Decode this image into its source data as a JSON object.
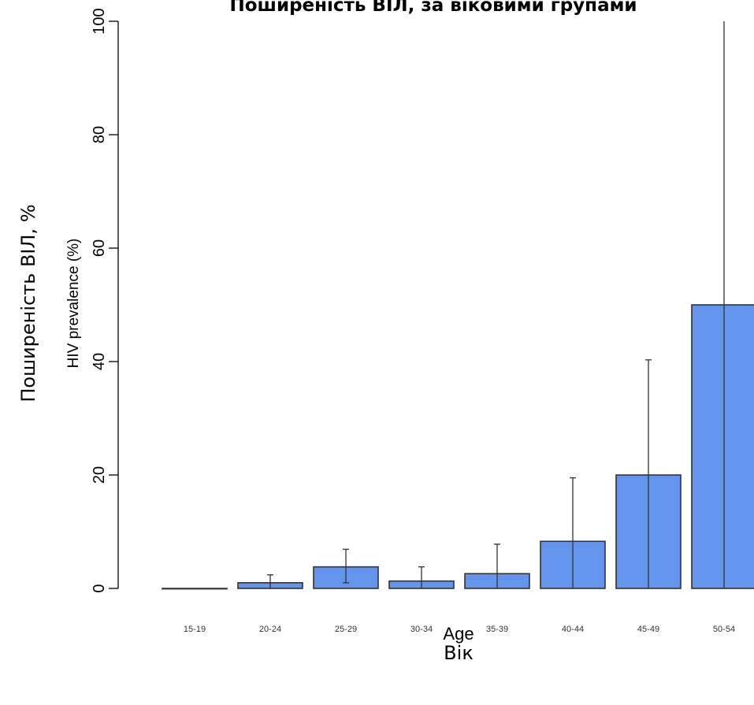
{
  "chart_data": {
    "type": "bar",
    "title": "Поширеність ВІЛ, за віковими групами",
    "xlabel": "Age",
    "xlabel_translation": "Вік",
    "ylabel": "HIV prevalence (%)",
    "ylabel_translation": "Поширеність ВІЛ, %",
    "categories": [
      "15-19",
      "20-24",
      "25-29",
      "30-34",
      "35-39",
      "40-44",
      "45-49",
      "50-54"
    ],
    "values": [
      0,
      1,
      3.8,
      1.3,
      2.6,
      8.3,
      20,
      50
    ],
    "error_lower": [
      0,
      0,
      1,
      0,
      0,
      0,
      0,
      0
    ],
    "error_upper": [
      0,
      2.4,
      6.9,
      3.8,
      7.8,
      19.5,
      40.3,
      100
    ],
    "ylim": [
      0,
      100
    ],
    "yticks": [
      0,
      20,
      40,
      60,
      80,
      100
    ],
    "grid": false,
    "bar_color": "#6495ed",
    "bar_stroke": "#333333"
  }
}
